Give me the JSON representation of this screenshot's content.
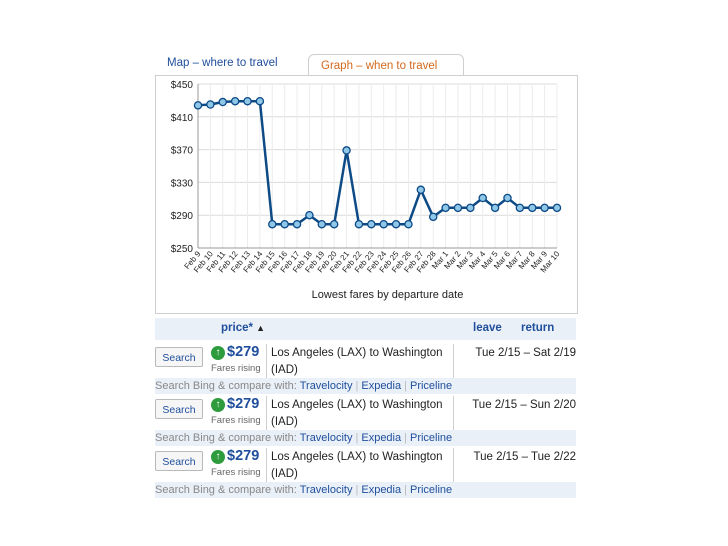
{
  "tabs": {
    "map": "Map – where to travel",
    "graph": "Graph – when to travel"
  },
  "colors": {
    "line": "#0d4a86",
    "marker_fill": "#8fc7e8",
    "link": "#1f4e9c",
    "active_tab": "#d2691e",
    "rising": "#2e9b3d"
  },
  "chart_data": {
    "type": "line",
    "title": "",
    "xlabel": "Lowest fares by departure date",
    "ylabel": "",
    "ylim": [
      250,
      450
    ],
    "yticks": [
      "$450",
      "$410",
      "$370",
      "$330",
      "$290",
      "$250"
    ],
    "ytick_values": [
      450,
      410,
      370,
      330,
      290,
      250
    ],
    "grid": true,
    "categories": [
      "Feb 9",
      "Feb 10",
      "Feb 11",
      "Feb 12",
      "Feb 13",
      "Feb 14",
      "Feb 15",
      "Feb 16",
      "Feb 17",
      "Feb 18",
      "Feb 19",
      "Feb 20",
      "Feb 21",
      "Feb 22",
      "Feb 23",
      "Feb 24",
      "Feb 25",
      "Feb 26",
      "Feb 27",
      "Feb 28",
      "Mar 1",
      "Mar 2",
      "Mar 3",
      "Mar 4",
      "Mar 5",
      "Mar 6",
      "Mar 7",
      "Mar 8",
      "Mar 9",
      "Mar 10"
    ],
    "series": [
      {
        "values": [
          424,
          425,
          428,
          429,
          429,
          429,
          279,
          279,
          279,
          290,
          279,
          279,
          369,
          279,
          279,
          279,
          279,
          279,
          321,
          288,
          299,
          299,
          299,
          311,
          299,
          311,
          299,
          299,
          299,
          299
        ]
      }
    ]
  },
  "results": {
    "header": {
      "price": "price*",
      "sort_indicator": "▲",
      "leave": "leave",
      "return": "return"
    },
    "rows": [
      {
        "button": "Search",
        "price": "$279",
        "trend": "Fares rising",
        "route_line1": "Los Angeles (LAX) to Washington",
        "route_line2": "(IAD)",
        "dates": "Tue 2/15 – Sat 2/19"
      },
      {
        "button": "Search",
        "price": "$279",
        "trend": "Fares rising",
        "route_line1": "Los Angeles (LAX) to Washington",
        "route_line2": "(IAD)",
        "dates": "Tue 2/15 – Sun 2/20"
      },
      {
        "button": "Search",
        "price": "$279",
        "trend": "Fares rising",
        "route_line1": "Los Angeles (LAX) to Washington",
        "route_line2": "(IAD)",
        "dates": "Tue 2/15 – Tue 2/22"
      }
    ],
    "compare": {
      "prefix": "Search Bing & compare with:",
      "links": [
        "Travelocity",
        "Expedia",
        "Priceline"
      ]
    }
  }
}
